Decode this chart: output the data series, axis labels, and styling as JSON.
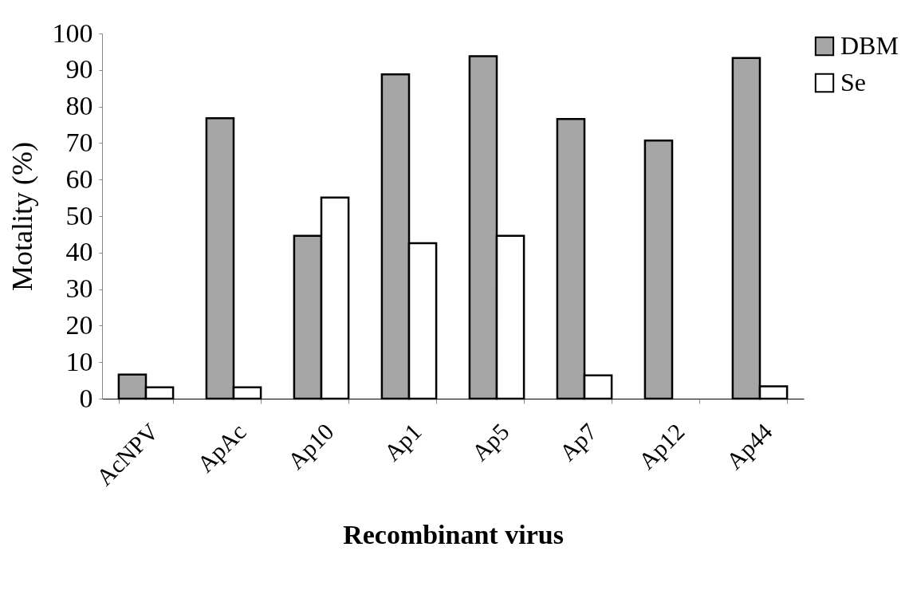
{
  "chart_data": {
    "type": "bar",
    "xlabel": "Recombinant virus",
    "ylabel": "Motality (%)",
    "categories": [
      "AcNPV",
      "ApAc",
      "Ap10",
      "Ap1",
      "Ap5",
      "Ap7",
      "Ap12",
      "Ap44"
    ],
    "series": [
      {
        "name": "DBM",
        "color": "#a6a6a6",
        "values": [
          6.6,
          76.8,
          44.6,
          88.8,
          93.8,
          76.6,
          70.7,
          93.3
        ]
      },
      {
        "name": "Se",
        "color": "#ffffff",
        "values": [
          3.1,
          3.1,
          55.1,
          42.6,
          44.6,
          6.4,
          null,
          3.4
        ]
      }
    ],
    "ylim": [
      0,
      100
    ],
    "yticks": [
      0,
      10,
      20,
      30,
      40,
      50,
      60,
      70,
      80,
      90,
      100
    ],
    "grid": false,
    "legend": "right"
  }
}
